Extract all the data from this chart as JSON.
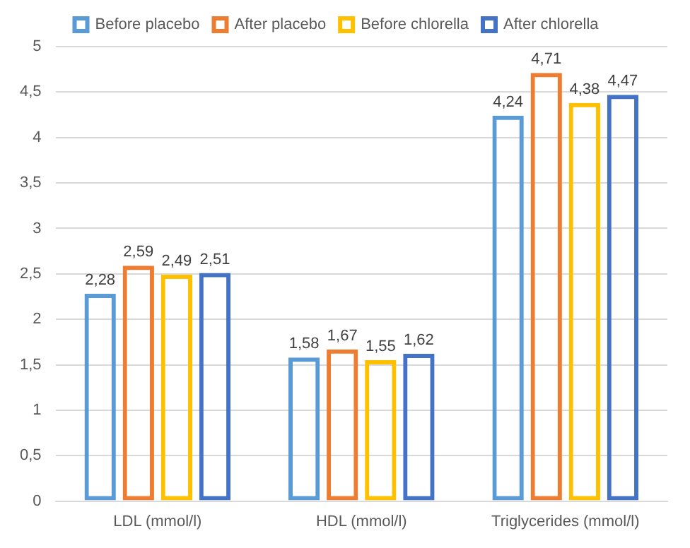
{
  "chart_data": {
    "type": "bar",
    "categories": [
      "LDL (mmol/l)",
      "HDL (mmol/l)",
      "Triglycerides (mmol/l)"
    ],
    "series": [
      {
        "name": "Before placebo",
        "color": "#5b9bd5",
        "values": [
          2.28,
          1.58,
          4.24
        ],
        "value_labels": [
          "2,28",
          "1,58",
          "4,24"
        ]
      },
      {
        "name": "After placebo",
        "color": "#ed7d31",
        "values": [
          2.59,
          1.67,
          4.71
        ],
        "value_labels": [
          "2,59",
          "1,67",
          "4,71"
        ]
      },
      {
        "name": "Before chlorella",
        "color": "#ffc000",
        "values": [
          2.49,
          1.55,
          4.38
        ],
        "value_labels": [
          "2,49",
          "1,55",
          "4,38"
        ]
      },
      {
        "name": "After chlorella",
        "color": "#4472c4",
        "values": [
          2.51,
          1.62,
          4.47
        ],
        "value_labels": [
          "2,51",
          "1,62",
          "4,47"
        ]
      }
    ],
    "ylim": [
      0,
      5
    ],
    "yticks": [
      0,
      {
        "value": 0.5,
        "label": "0,5"
      },
      1,
      {
        "value": 1.5,
        "label": "1,5"
      },
      2,
      {
        "value": 2.5,
        "label": "2,5"
      },
      3,
      {
        "value": 3.5,
        "label": "3,5"
      },
      4,
      {
        "value": 4.5,
        "label": "4,5"
      },
      5
    ],
    "grid": "y",
    "legend": "top"
  }
}
